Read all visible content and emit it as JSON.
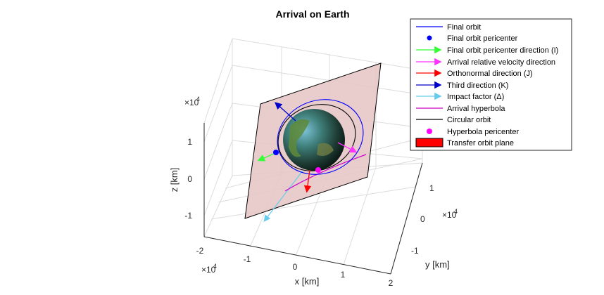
{
  "chart_data": {
    "type": "3d-plot",
    "title": "Arrival on Earth",
    "xlabel": "x [km]",
    "ylabel": "y [km]",
    "zlabel": "z [km]",
    "x_ticks": [
      "-2",
      "-1",
      "0",
      "1",
      "2"
    ],
    "y_ticks": [
      "-1",
      "0",
      "1"
    ],
    "z_ticks": [
      "-1",
      "0",
      "1"
    ],
    "x_exponent": "×10",
    "y_exponent": "×10",
    "z_exponent": "×10",
    "exponent_power": "4",
    "xlim": [
      -2,
      2
    ],
    "ylim": [
      -1.5,
      1.5
    ],
    "zlim": [
      -1.5,
      1.5
    ],
    "grid": true,
    "legend_position": "top-right",
    "legend": [
      {
        "label": "Final orbit",
        "style": "line",
        "color": "#0000ff"
      },
      {
        "label": "Final orbit pericenter",
        "style": "dot",
        "color": "#0000ff"
      },
      {
        "label": "Final orbit pericenter direction (I)",
        "style": "arrow",
        "color": "#33ff33"
      },
      {
        "label": "Arrival relative velocity direction",
        "style": "arrow",
        "color": "#ff33ff"
      },
      {
        "label": "Orthonormal direction (J)",
        "style": "arrow",
        "color": "#ff0000"
      },
      {
        "label": "Third direction (K)",
        "style": "arrow",
        "color": "#0000cc"
      },
      {
        "label": "Impact factor (Δ)",
        "style": "arrow",
        "color": "#66ccee"
      },
      {
        "label": "Arrival hyperbola",
        "style": "line",
        "color": "#cc00cc"
      },
      {
        "label": "Circular orbit",
        "style": "line",
        "color": "#000000"
      },
      {
        "label": "Hyperbola pericenter",
        "style": "dot",
        "color": "#ff00ff"
      },
      {
        "label": "Transfer orbit plane",
        "style": "patch",
        "color": "#ff0000"
      }
    ]
  }
}
